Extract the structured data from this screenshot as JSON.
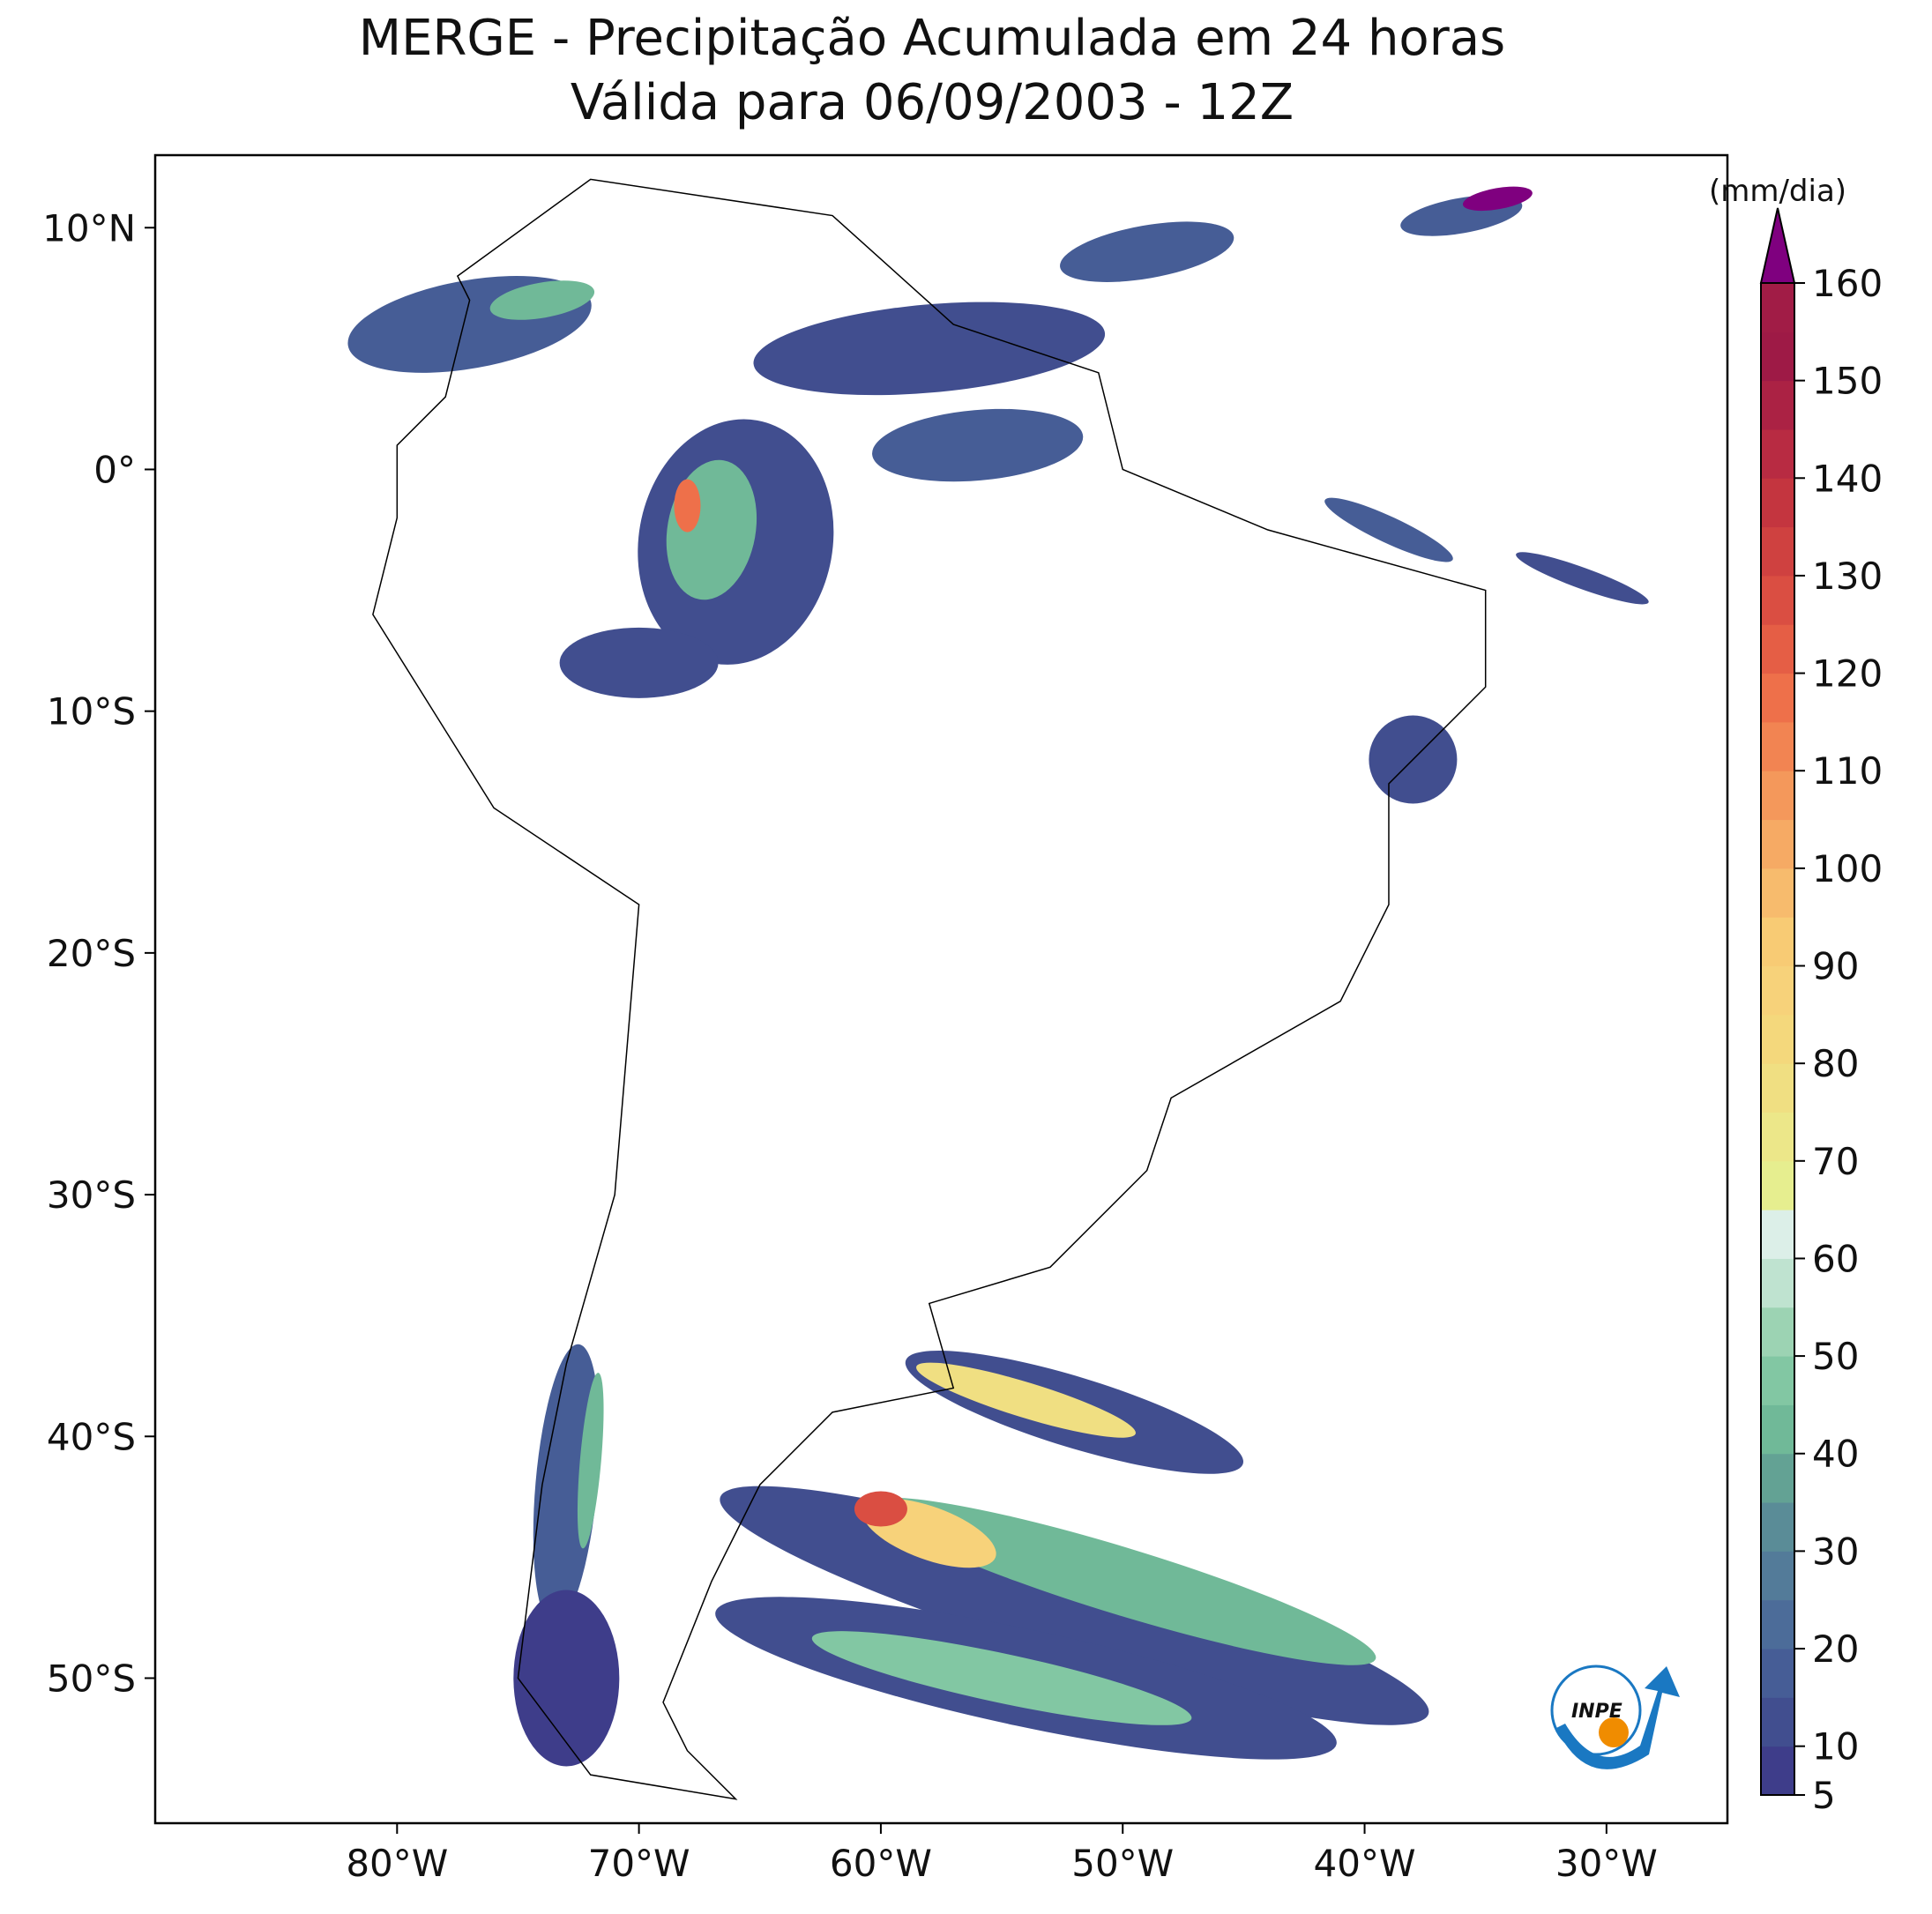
{
  "map": {
    "title": "MERGE - Precipitação Acumulada em 24 horas",
    "subtitle": "Válida para 06/09/2003 - 12Z",
    "xlim": [
      -90,
      -25
    ],
    "ylim": [
      -56,
      13
    ],
    "xticks": [
      {
        "value": -80,
        "label": "80°W"
      },
      {
        "value": -70,
        "label": "70°W"
      },
      {
        "value": -60,
        "label": "60°W"
      },
      {
        "value": -50,
        "label": "50°W"
      },
      {
        "value": -40,
        "label": "40°W"
      },
      {
        "value": -30,
        "label": "30°W"
      }
    ],
    "yticks": [
      {
        "value": 10,
        "label": "10°N"
      },
      {
        "value": 0,
        "label": "0°"
      },
      {
        "value": -10,
        "label": "10°S"
      },
      {
        "value": -20,
        "label": "20°S"
      },
      {
        "value": -30,
        "label": "30°S"
      },
      {
        "value": -40,
        "label": "40°S"
      },
      {
        "value": -50,
        "label": "50°S"
      }
    ],
    "colorbar": {
      "unit": "(mm/dia)",
      "lim": [
        5,
        160
      ],
      "ticks": [
        5,
        10,
        20,
        30,
        40,
        50,
        60,
        70,
        80,
        90,
        100,
        110,
        120,
        130,
        140,
        150,
        160
      ],
      "colors": [
        "#3e3d8a",
        "#414e8f",
        "#465d96",
        "#4c6c99",
        "#537b99",
        "#5a8c97",
        "#63a294",
        "#70b998",
        "#82c7a3",
        "#9cd3b3",
        "#bfe3d0",
        "#dcefe8",
        "#e6ee8f",
        "#ece789",
        "#f0df82",
        "#f4d87c",
        "#f7d27a",
        "#f8cb74",
        "#f7bb6d",
        "#f6aa64",
        "#f4985b",
        "#f28452",
        "#ee704a",
        "#e55e45",
        "#da4e42",
        "#cf4140",
        "#c4353f",
        "#b82b42",
        "#ab2244",
        "#9e1a46",
        "#a11c46"
      ],
      "extend_color": "#7f007f"
    },
    "logo": "INPE"
  }
}
